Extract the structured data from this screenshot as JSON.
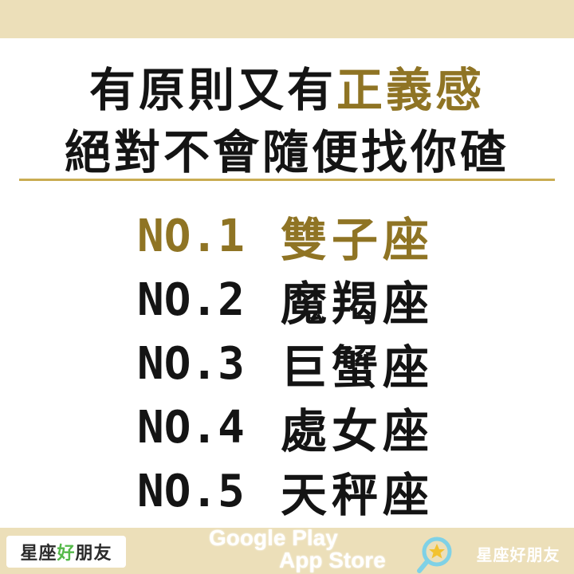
{
  "headline": {
    "line1_plain": "有原則又有",
    "line1_accent": "正義感",
    "line2": "絕對不會隨便找你碴"
  },
  "ranking": [
    {
      "rank": "NO.1",
      "sign": "雙子座"
    },
    {
      "rank": "NO.2",
      "sign": "魔羯座"
    },
    {
      "rank": "NO.3",
      "sign": "巨蟹座"
    },
    {
      "rank": "NO.4",
      "sign": "處女座"
    },
    {
      "rank": "NO.5",
      "sign": "天秤座"
    }
  ],
  "footer": {
    "brand_left_a": "星座",
    "brand_left_b": "好",
    "brand_left_c": "朋友",
    "store_line1": "Google Play",
    "store_line2": "App Store",
    "search_icon": "magnifier-star-icon",
    "brand_right": "星座好朋友"
  },
  "colors": {
    "accent": "#8f7424",
    "band": "#ecdfb9",
    "divider": "#c9ac52",
    "text": "#141414"
  }
}
